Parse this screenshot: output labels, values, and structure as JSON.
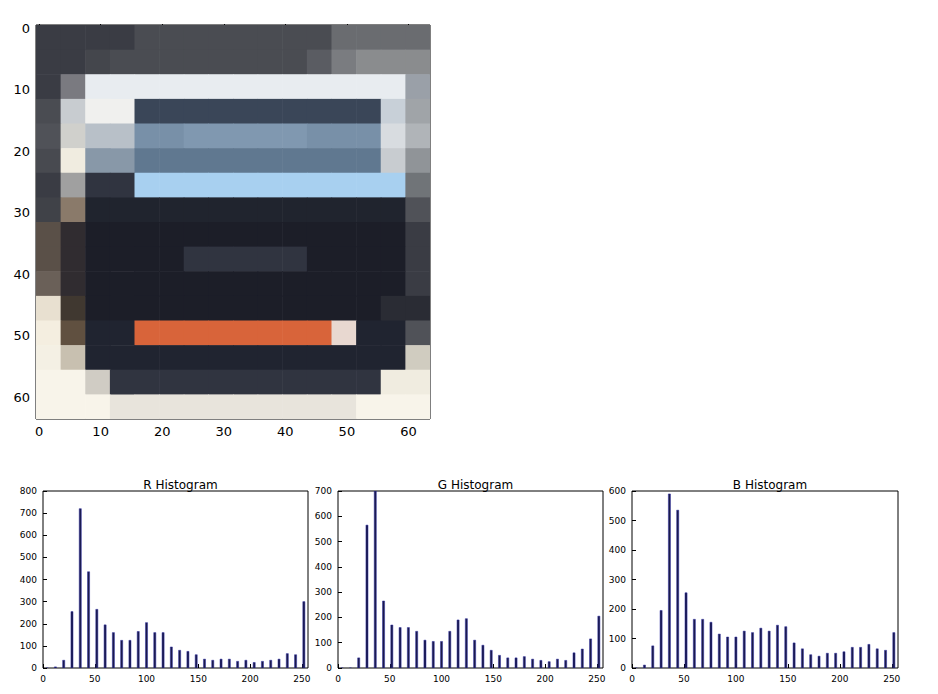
{
  "chart_data": [
    {
      "type": "image",
      "xlim": [
        -0.5,
        63.5
      ],
      "ylim": [
        -0.5,
        63.5
      ],
      "xticks": [
        0,
        10,
        20,
        30,
        40,
        50,
        60
      ],
      "yticks": [
        0,
        10,
        20,
        30,
        40,
        50,
        60
      ],
      "cells": [
        [
          "#3a3c44",
          "#3a3c44",
          "#3a3c44",
          "#3a3c44",
          "#4a4c52",
          "#4a4c52",
          "#4a4c52",
          "#4a4c52",
          "#4a4c52",
          "#4a4c52",
          "#4a4c52",
          "#4a4c52",
          "#6a6c70",
          "#6a6c70",
          "#6a6c70",
          "#6a6c70"
        ],
        [
          "#3a3c44",
          "#3a3c44",
          "#44464c",
          "#4a4c52",
          "#4a4c52",
          "#4a4c52",
          "#4a4c52",
          "#4a4c52",
          "#4a4c52",
          "#4a4c52",
          "#4a4c52",
          "#5a5c62",
          "#7a7c80",
          "#8a8c8e",
          "#8a8c8e",
          "#8a8c8e"
        ],
        [
          "#3a3c44",
          "#7a7a80",
          "#e8ecf0",
          "#e8ecf0",
          "#e8ecf0",
          "#e8ecf0",
          "#e8ecf0",
          "#e8ecf0",
          "#e8ecf0",
          "#e8ecf0",
          "#e8ecf0",
          "#e8ecf0",
          "#e8ecf0",
          "#e8ecf0",
          "#e8ecf0",
          "#9aa0a8"
        ],
        [
          "#4a4c52",
          "#c8ccd0",
          "#f0f0ee",
          "#f0f0ee",
          "#3a4658",
          "#3a4658",
          "#3a4658",
          "#3a4658",
          "#3a4658",
          "#3a4658",
          "#3a4658",
          "#3a4658",
          "#3a4658",
          "#3a4658",
          "#c8d0d8",
          "#a0a4a8"
        ],
        [
          "#505258",
          "#d0d0cc",
          "#b8c0c8",
          "#b8c0c8",
          "#7890a8",
          "#7890a8",
          "#8098b0",
          "#8098b0",
          "#8098b0",
          "#8098b0",
          "#8098b0",
          "#7890a8",
          "#7890a8",
          "#7890a8",
          "#d8dce0",
          "#b0b4b8"
        ],
        [
          "#484a50",
          "#f0ece0",
          "#8898a8",
          "#8898a8",
          "#607890",
          "#607890",
          "#607890",
          "#607890",
          "#607890",
          "#607890",
          "#607890",
          "#607890",
          "#607890",
          "#607890",
          "#c8ccd0",
          "#909498"
        ],
        [
          "#3a3c44",
          "#a0a0a0",
          "#303440",
          "#303440",
          "#a8d0f0",
          "#a8d0f0",
          "#a8d0f0",
          "#a8d0f0",
          "#a8d0f0",
          "#a8d0f0",
          "#a8d0f0",
          "#a8d0f0",
          "#a8d0f0",
          "#a8d0f0",
          "#a8d0f0",
          "#707478"
        ],
        [
          "#404248",
          "#8a7a6a",
          "#20242e",
          "#20242e",
          "#20242e",
          "#20242e",
          "#20242e",
          "#20242e",
          "#20242e",
          "#20242e",
          "#20242e",
          "#20242e",
          "#20242e",
          "#20242e",
          "#20242e",
          "#505258"
        ],
        [
          "#5a5048",
          "#302c30",
          "#1c1e28",
          "#1c1e28",
          "#1c1e28",
          "#1c1e28",
          "#1c1e28",
          "#1c1e28",
          "#1c1e28",
          "#1c1e28",
          "#1c1e28",
          "#1c1e28",
          "#1c1e28",
          "#1c1e28",
          "#1c1e28",
          "#3a3c44"
        ],
        [
          "#5a5048",
          "#302c30",
          "#1c1e28",
          "#1c1e28",
          "#1c1e28",
          "#1c1e28",
          "#303440",
          "#303440",
          "#303440",
          "#303440",
          "#303440",
          "#1c1e28",
          "#1c1e28",
          "#1c1e28",
          "#1c1e28",
          "#3a3c44"
        ],
        [
          "#6a6058",
          "#302c30",
          "#1c1e28",
          "#1c1e28",
          "#1c1e28",
          "#1c1e28",
          "#1c1e28",
          "#1c1e28",
          "#1c1e28",
          "#1c1e28",
          "#1c1e28",
          "#1c1e28",
          "#1c1e28",
          "#1c1e28",
          "#1c1e28",
          "#3a3c44"
        ],
        [
          "#e8e0d0",
          "#403830",
          "#1c1e28",
          "#1c1e28",
          "#1c1e28",
          "#1c1e28",
          "#1c1e28",
          "#1c1e28",
          "#1c1e28",
          "#1c1e28",
          "#1c1e28",
          "#1c1e28",
          "#1c1e28",
          "#1c1e28",
          "#2a2c34",
          "#2a2c34"
        ],
        [
          "#f4eee0",
          "#605040",
          "#202430",
          "#202430",
          "#d8643a",
          "#d8643a",
          "#d8643a",
          "#d8643a",
          "#d8643a",
          "#d8643a",
          "#d8643a",
          "#d8643a",
          "#e8d8d0",
          "#202430",
          "#202430",
          "#505258"
        ],
        [
          "#f4f0e4",
          "#c8c0b0",
          "#202430",
          "#202430",
          "#202430",
          "#202430",
          "#202430",
          "#202430",
          "#202430",
          "#202430",
          "#202430",
          "#202430",
          "#202430",
          "#202430",
          "#202430",
          "#d0ccc0"
        ],
        [
          "#f8f4ea",
          "#f8f4ea",
          "#d0ccc4",
          "#303440",
          "#303440",
          "#303440",
          "#303440",
          "#303440",
          "#303440",
          "#303440",
          "#303440",
          "#303440",
          "#303440",
          "#303440",
          "#f0ece0",
          "#f0ece0"
        ],
        [
          "#f8f4ea",
          "#f8f4ea",
          "#f8f4ea",
          "#e8e4dc",
          "#e8e4dc",
          "#e8e4dc",
          "#e8e4dc",
          "#e8e4dc",
          "#e8e4dc",
          "#e8e4dc",
          "#e8e4dc",
          "#e8e4dc",
          "#e8e4dc",
          "#f8f4ea",
          "#f8f4ea",
          "#f8f4ea"
        ]
      ]
    },
    {
      "type": "histogram",
      "title": "R Histogram",
      "color": "#1a1a4a",
      "bins": [
        0,
        8,
        16,
        24,
        32,
        40,
        48,
        56,
        64,
        72,
        80,
        88,
        96,
        104,
        112,
        120,
        128,
        136,
        144,
        152,
        160,
        168,
        176,
        184,
        192,
        200,
        208,
        216,
        224,
        232,
        240,
        248,
        256
      ],
      "values": [
        0,
        5,
        35,
        255,
        720,
        435,
        265,
        195,
        160,
        125,
        125,
        165,
        205,
        160,
        160,
        95,
        80,
        75,
        60,
        40,
        35,
        40,
        40,
        30,
        35,
        25,
        30,
        35,
        40,
        65,
        60,
        300
      ],
      "xlim": [
        0,
        256
      ],
      "xticks": [
        0,
        50,
        100,
        150,
        200,
        250
      ],
      "ylim": [
        0,
        800
      ],
      "yticks": [
        0,
        100,
        200,
        300,
        400,
        500,
        600,
        700,
        800
      ]
    },
    {
      "type": "histogram",
      "title": "G Histogram",
      "color": "#1a1a4a",
      "bins": [
        0,
        8,
        16,
        24,
        32,
        40,
        48,
        56,
        64,
        72,
        80,
        88,
        96,
        104,
        112,
        120,
        128,
        136,
        144,
        152,
        160,
        168,
        176,
        184,
        192,
        200,
        208,
        216,
        224,
        232,
        240,
        248,
        256
      ],
      "values": [
        0,
        0,
        40,
        565,
        700,
        265,
        170,
        160,
        160,
        145,
        110,
        105,
        105,
        145,
        190,
        195,
        110,
        90,
        70,
        50,
        40,
        40,
        45,
        35,
        30,
        25,
        35,
        30,
        60,
        75,
        115,
        205
      ],
      "xlim": [
        0,
        256
      ],
      "xticks": [
        0,
        50,
        100,
        150,
        200,
        250
      ],
      "ylim": [
        0,
        700
      ],
      "yticks": [
        0,
        100,
        200,
        300,
        400,
        500,
        600,
        700
      ]
    },
    {
      "type": "histogram",
      "title": "B Histogram",
      "color": "#1a1a4a",
      "bins": [
        0,
        8,
        16,
        24,
        32,
        40,
        48,
        56,
        64,
        72,
        80,
        88,
        96,
        104,
        112,
        120,
        128,
        136,
        144,
        152,
        160,
        168,
        176,
        184,
        192,
        200,
        208,
        216,
        224,
        232,
        240,
        248,
        256
      ],
      "values": [
        0,
        10,
        75,
        195,
        590,
        535,
        255,
        165,
        165,
        155,
        115,
        105,
        105,
        125,
        120,
        135,
        125,
        145,
        140,
        85,
        65,
        45,
        40,
        50,
        50,
        55,
        70,
        70,
        80,
        65,
        60,
        120
      ],
      "xlim": [
        0,
        256
      ],
      "xticks": [
        0,
        50,
        100,
        150,
        200,
        250
      ],
      "ylim": [
        0,
        600
      ],
      "yticks": [
        0,
        100,
        200,
        300,
        400,
        500,
        600
      ]
    }
  ]
}
